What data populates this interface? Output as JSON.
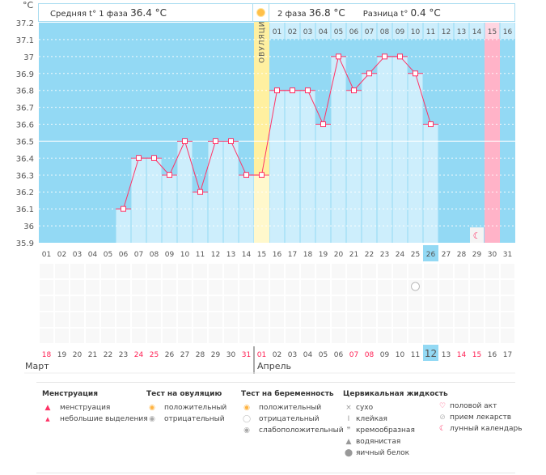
{
  "header": {
    "phase1_label": "Средняя t° 1 фаза",
    "phase1_value": "36.4 °C",
    "phase2_label": "2 фаза",
    "phase2_value": "36.8 °C",
    "diff_label": "Разница t°",
    "diff_value": "0.4 °C",
    "unit": "°C",
    "ovulation_label": "ОВУЛЯЦИЯ"
  },
  "chart_data": {
    "type": "line",
    "ylabel": "°C",
    "ylim": [
      35.9,
      37.2
    ],
    "yticks": [
      "37.2",
      "37.1",
      "37",
      "36.9",
      "36.8",
      "36.7",
      "36.6",
      "36.5",
      "36.4",
      "36.3",
      "36.2",
      "36.1",
      "36",
      "35.9"
    ],
    "days": [
      "01",
      "02",
      "03",
      "04",
      "05",
      "06",
      "07",
      "08",
      "09",
      "10",
      "11",
      "12",
      "13",
      "14",
      "15",
      "16",
      "17",
      "18",
      "19",
      "20",
      "21",
      "22",
      "23",
      "24",
      "25",
      "26",
      "27",
      "28",
      "29",
      "30",
      "31"
    ],
    "temps": [
      null,
      null,
      null,
      null,
      null,
      36.1,
      36.4,
      36.4,
      36.3,
      36.5,
      36.2,
      36.5,
      36.5,
      36.3,
      36.3,
      36.8,
      36.8,
      36.8,
      36.6,
      37.0,
      36.8,
      36.9,
      37.0,
      37.0,
      36.9,
      36.6,
      null,
      null,
      null,
      null,
      null
    ],
    "coverline": 36.5,
    "ovulation_day": 15,
    "today_day": 26,
    "expected_period_day": 30,
    "moon_day": 29,
    "pregnancy_test_negative_day": 25,
    "phase2_days": [
      "01",
      "02",
      "03",
      "04",
      "05",
      "06",
      "07",
      "08",
      "09",
      "10",
      "11",
      "12",
      "13",
      "14",
      "15",
      "16"
    ],
    "calendar_dates": [
      "18",
      "19",
      "20",
      "21",
      "22",
      "23",
      "24",
      "25",
      "26",
      "27",
      "28",
      "29",
      "30",
      "31",
      "01",
      "02",
      "03",
      "04",
      "05",
      "06",
      "07",
      "08",
      "09",
      "10",
      "11",
      "12",
      "13",
      "14",
      "15",
      "16",
      "17"
    ],
    "calendar_red": [
      "18",
      "24",
      "25",
      "31",
      "01",
      "07",
      "08",
      "14",
      "15"
    ],
    "calendar_today": "12",
    "months": [
      "Март",
      "Апрель"
    ]
  },
  "colors": {
    "bg": "#93d9f4",
    "bar": "#cdeefc",
    "line": "#ff3366",
    "ovulation": "#fff0a0",
    "period": "#ffb3c8",
    "today": "#93d9f4"
  },
  "legend": {
    "menstruation": {
      "title": "Менструация",
      "items": [
        "менструация",
        "небольшие выделения"
      ]
    },
    "ovulation_test": {
      "title": "Тест на овуляцию",
      "items": [
        "положительный",
        "отрицательный"
      ]
    },
    "pregnancy_test": {
      "title": "Тест на беременность",
      "items": [
        "положительный",
        "отрицательный",
        "слабоположительный"
      ]
    },
    "cervical": {
      "title": "Цервикальная жидкость",
      "items": [
        "сухо",
        "клейкая",
        "кремообразная",
        "водянистая",
        "яичный белок"
      ]
    },
    "other": {
      "items": [
        "половой акт",
        "прием лекарств",
        "лунный календарь"
      ]
    }
  }
}
